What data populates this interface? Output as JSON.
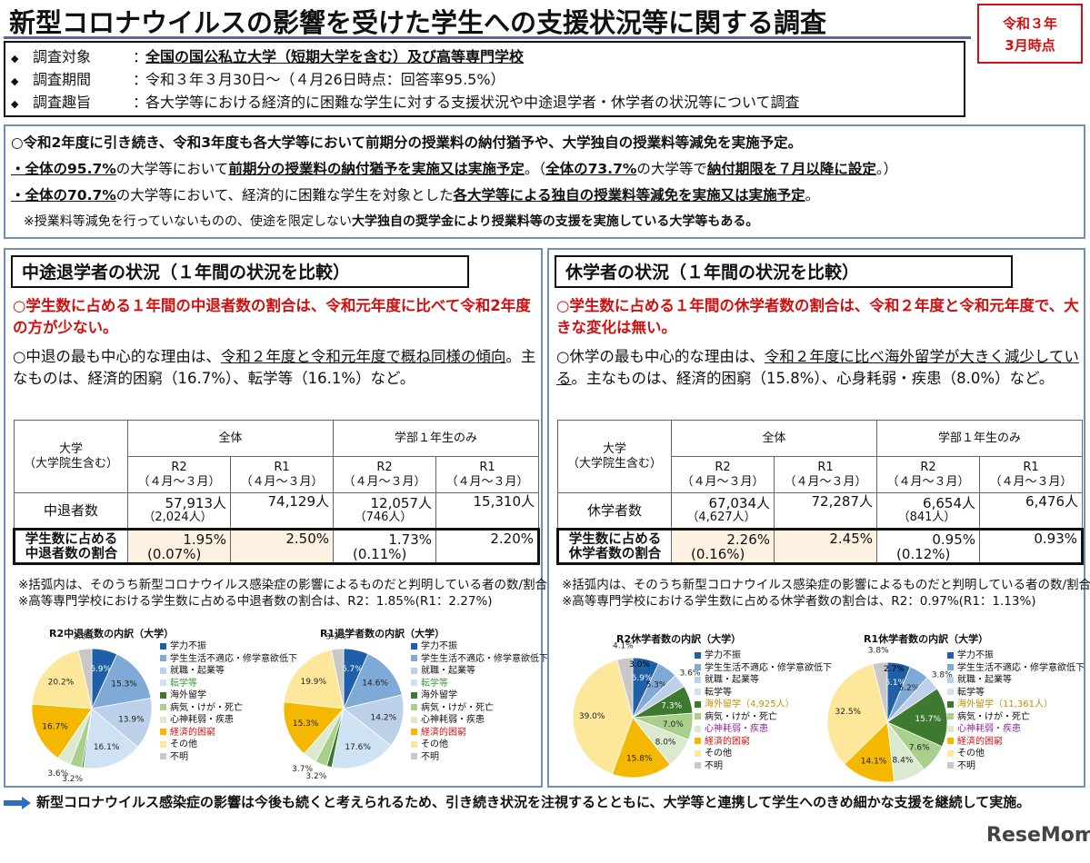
{
  "title": "新型コロナウイルスの影響を受けた学生への支援状況等に関する調査",
  "date_box": {
    "line1": "令和３年",
    "line2": "3月時点"
  },
  "survey": {
    "marker": "◆",
    "rows": [
      {
        "label": "調査対象",
        "colon": "：",
        "value": "全国の国公私立大学（短期大学を含む）及び高等専門学校"
      },
      {
        "label": "調査期間",
        "colon": "：",
        "value": "令和３年３月30日～（４月26日時点：回答率95.5%）"
      },
      {
        "label": "調査趣旨",
        "colon": "：",
        "value": "各大学等における経済的に困難な学生に対する支援状況や中途退学者・休学者の状況等について調査"
      }
    ]
  },
  "summary": {
    "line1": "○令和2年度に引き続き、令和3年度も各大学等において前期分の授業料の納付猶予や、大学独自の授業料等減免を実施予定。",
    "line2a": "・全体の95.7%",
    "line2b": "の大学等において",
    "line2c": "前期分の授業料の納付猶予を実施又は実施予定",
    "line2d": "。（",
    "line2e": "全体の73.7%",
    "line2f": "の大学等で",
    "line2g": "納付期限を７月以降に設定",
    "line2h": "。）",
    "line3a": "・全体の70.7%",
    "line3b": "の大学等において、経済的に困難な学生を対象とした",
    "line3c": "各大学等による独自の授業料等減免を実施又は実施予定",
    "line3d": "。",
    "line4a": "　※授業料等減免を行っていないものの、使途を限定しない",
    "line4b": "大学独自の奨学金により授業料等の支援を実施している大学等もある。"
  },
  "left": {
    "title": "中途退学者の状況（１年間の状況を比較）",
    "red": "○学生数に占める１年間の中退者数の割合は、令和元年度に比べて令和2年度の方が少ない。",
    "gray_a": "○中退の最も中心的な理由は、",
    "gray_b": "令和２年度と令和元年度で概ね同様の傾向",
    "gray_c": "。主なものは、経済的困窮（16.7%）、転学等（16.1%）など。",
    "table": {
      "corner1": "大学",
      "corner2": "（大学院生含む）",
      "h_all": "全体",
      "h_first": "学部１年生のみ",
      "sub": [
        {
          "a": "R2",
          "b": "（４月～３月）"
        },
        {
          "a": "R1",
          "b": "（４月～３月）"
        },
        {
          "a": "R2",
          "b": "（４月～３月）"
        },
        {
          "a": "R1",
          "b": "（４月～３月）"
        }
      ],
      "row1_label": "中退者数",
      "row1": [
        {
          "v": "57,913人",
          "s": "（2,024人）"
        },
        {
          "v": "74,129人",
          "s": ""
        },
        {
          "v": "12,057人",
          "s": "（746人）"
        },
        {
          "v": "15,310人",
          "s": ""
        }
      ],
      "row2_label1": "学生数に占める",
      "row2_label2": "中退者数の割合",
      "row2": [
        {
          "v": "1.95%",
          "s": "(0.07%)"
        },
        {
          "v": "2.50%",
          "s": ""
        },
        {
          "v": "1.73%",
          "s": "(0.11%)"
        },
        {
          "v": "2.20%",
          "s": ""
        }
      ]
    },
    "note1": "※括弧内は、そのうち新型コロナウイルス感染症の影響によるものだと判明している者の数/割合",
    "note2": "※高等専門学校における学生数に占める中退者数の割合は、R2：1.85%(R1：2.27%)",
    "pie1_title": "R2中退者数の内訳（大学）",
    "pie2_title": "R1退学者数の内訳（大学）",
    "legend": [
      "学力不振",
      "学生生活不適応・修学意欲低下",
      "就職・起業等",
      "転学等",
      "海外留学",
      "病気・けが・死亡",
      "心神耗弱・疾患",
      "経済的困窮",
      "その他",
      "不明"
    ]
  },
  "right": {
    "title": "休学者の状況（１年間の状況を比較）",
    "red": "○学生数に占める１年間の休学者数の割合は、令和２年度と令和元年度で、大きな変化は無い。",
    "gray_a": "○休学の最も中心的な理由は、",
    "gray_b": "令和２年度に比べ海外留学が大きく減少している",
    "gray_c": "。主なものは、経済的困窮（15.8%）、心身耗弱・疾患（8.0%）など。",
    "table": {
      "corner1": "大学",
      "corner2": "（大学院生含む）",
      "h_all": "全体",
      "h_first": "学部１年生のみ",
      "sub": [
        {
          "a": "R2",
          "b": "（４月～３月）"
        },
        {
          "a": "R1",
          "b": "（４月～３月）"
        },
        {
          "a": "R2",
          "b": "（４月～３月）"
        },
        {
          "a": "R1",
          "b": "（４月～３月）"
        }
      ],
      "row1_label": "休学者数",
      "row1": [
        {
          "v": "67,034人",
          "s": "（4,627人）"
        },
        {
          "v": "72,287人",
          "s": ""
        },
        {
          "v": "6,654人",
          "s": "（841人）"
        },
        {
          "v": "6,476人",
          "s": ""
        }
      ],
      "row2_label1": "学生数に占める",
      "row2_label2": "休学者数の割合",
      "row2": [
        {
          "v": "2.26%",
          "s": "(0.16%)"
        },
        {
          "v": "2.45%",
          "s": ""
        },
        {
          "v": "0.95%",
          "s": "(0.12%)"
        },
        {
          "v": "0.93%",
          "s": ""
        }
      ]
    },
    "note1": "※括弧内は、そのうち新型コロナウイルス感染症の影響によるものだと判明している者の数/割合",
    "note2": "※高等専門学校における学生数に占める休学者数の割合は、R2：0.97%(R1：1.13%)",
    "pie1_title": "R2休学者数の内訳（大学）",
    "pie2_title": "R1休学者数の内訳（大学）",
    "legend_r2": [
      "学力不振",
      "学生生活不適応・修学意欲低下",
      "就職・起業等",
      "転学等",
      "海外留学（4,925人）",
      "病気・けが・死亡",
      "心神耗弱・疾患",
      "経済的困窮",
      "その他",
      "不明"
    ],
    "legend_r1": [
      "学力不振",
      "学生生活不適応・修学意欲低下",
      "就職・起業等",
      "転学等",
      "海外留学（11,361人）",
      "病気・けが・死亡",
      "心神耗弱・疾患",
      "経済的困窮",
      "その他",
      "不明"
    ]
  },
  "colors": [
    "#1f5fa8",
    "#7fa9d6",
    "#bcd0ea",
    "#cfe2f3",
    "#3d7a30",
    "#a8cf8c",
    "#dbe9cf",
    "#f5b800",
    "#fde79a",
    "#c8c8c8"
  ],
  "legend_text_colors": {
    "転学等_left": "#3d9a3d",
    "海外留学_right": "#c09000",
    "心神耗弱_right": "#8a2aa0",
    "経済的困窮": "#d01010"
  },
  "chart_data": [
    {
      "type": "pie",
      "title": "R2中退者数の内訳（大学）",
      "categories": [
        "学力不振",
        "学生生活不適応・修学意欲低下",
        "就職・起業等",
        "転学等",
        "海外留学",
        "病気・けが・死亡",
        "心神耗弱・疾患",
        "経済的困窮",
        "その他",
        "不明"
      ],
      "values": [
        6.9,
        15.3,
        13.9,
        16.1,
        0.5,
        3.2,
        3.6,
        16.7,
        20.2,
        3.6
      ]
    },
    {
      "type": "pie",
      "title": "R1退学者数の内訳（大学）",
      "categories": [
        "学力不振",
        "学生生活不適応・修学意欲低下",
        "就職・起業等",
        "転学等",
        "海外留学",
        "病気・けが・死亡",
        "心神耗弱・疾患",
        "経済的困窮",
        "その他",
        "不明"
      ],
      "values": [
        6.7,
        14.6,
        14.2,
        17.6,
        1.4,
        3.2,
        3.7,
        15.3,
        19.9,
        3.3
      ]
    },
    {
      "type": "pie",
      "title": "R2休学者数の内訳（大学）",
      "categories": [
        "学力不振",
        "学生生活不適応・修学意欲低下",
        "就職・起業等",
        "転学等",
        "海外留学",
        "病気・けが・死亡",
        "心神耗弱・疾患",
        "経済的困窮",
        "その他",
        "不明"
      ],
      "values": [
        6.9,
        5.3,
        3.6,
        0,
        7.3,
        7.0,
        8.0,
        15.8,
        39.0,
        4.1
      ],
      "labels": [
        "6.9%",
        "5.3%",
        "3.6%",
        "",
        "7.3%",
        "7.0%",
        "8.0%",
        "15.8%",
        "39.0%",
        "4.1%"
      ],
      "extra_label": "3.0%"
    },
    {
      "type": "pie",
      "title": "R1休学者数の内訳（大学）",
      "categories": [
        "学力不振",
        "学生生活不適応・修学意欲低下",
        "就職・起業等",
        "転学等",
        "海外留学",
        "病気・けが・死亡",
        "心神耗弱・疾患",
        "経済的困窮",
        "その他",
        "不明"
      ],
      "values": [
        6.1,
        5.2,
        3.8,
        0,
        15.7,
        7.6,
        8.4,
        14.1,
        32.5,
        3.8
      ],
      "labels": [
        "6.1%",
        "5.2%",
        "3.8%",
        "",
        "15.7%",
        "7.6%",
        "8.4%",
        "14.1%",
        "32.5%",
        "3.8%"
      ],
      "extra_label": "2.7%"
    }
  ],
  "footer": "新型コロナウイルス感染症の影響は今後も続くと考えられるため、引き続き状況を注視するとともに、大学等と連携して学生へのきめ細かな支援を継続して実施。",
  "logo": "ReseMom"
}
